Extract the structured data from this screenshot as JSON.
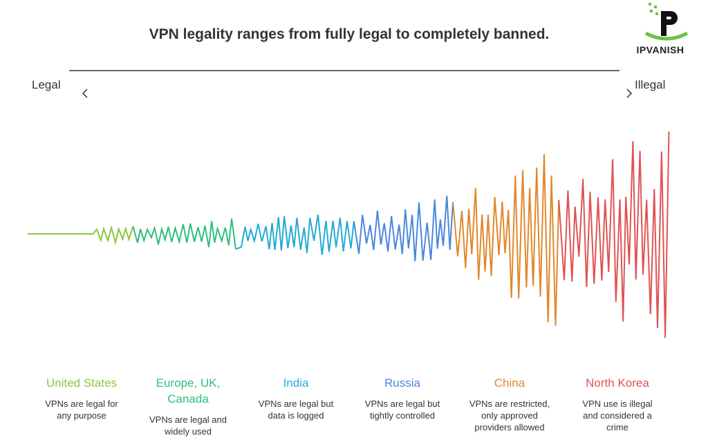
{
  "title": "VPN legality ranges from fully legal to completely banned.",
  "logo": "IPVANISH",
  "scale": {
    "left": "Legal",
    "right": "Illegal"
  },
  "regions": [
    {
      "name": "United States",
      "description": "VPNs are legal for any purpose"
    },
    {
      "name": "Europe, UK, Canada",
      "description": "VPNs are legal and widely used"
    },
    {
      "name": "India",
      "description": "VPNs are legal but data is logged"
    },
    {
      "name": "Russia",
      "description": "VPNs are legal but tightly controlled"
    },
    {
      "name": "China",
      "description": "VPNs are restricted, only approved providers allowed"
    },
    {
      "name": "North Korea",
      "description": "VPN use is illegal and considered a crime"
    }
  ]
}
